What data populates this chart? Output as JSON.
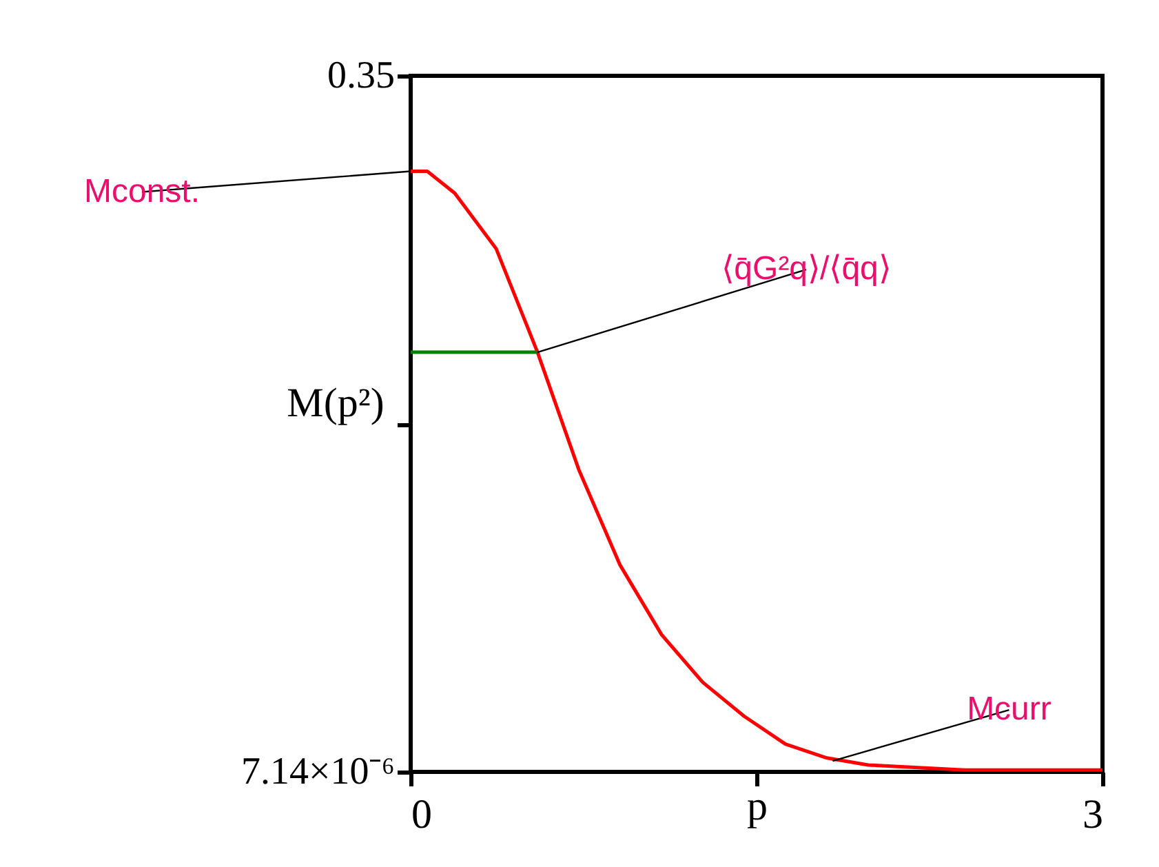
{
  "chart_data": {
    "type": "line",
    "ylabel": "M(p²)",
    "xlabel": "p",
    "xlim": [
      0,
      3
    ],
    "ylim": [
      7.14e-06,
      0.35
    ],
    "xticks": [
      0,
      {
        "value": 1.5,
        "label": null
      },
      3
    ],
    "yticks": [
      {
        "value": 7.14e-06,
        "label": "7.14×10⁻⁶"
      },
      {
        "value": 0.175,
        "label": null
      },
      0.35
    ],
    "grid": false,
    "marker": "none",
    "line_style": "solid",
    "series": [
      {
        "color": "#ff0000",
        "x": [
          0,
          0.072,
          0.191,
          0.371,
          0.55,
          0.729,
          0.908,
          1.088,
          1.267,
          1.446,
          1.625,
          1.805,
          1.984,
          2.402,
          3.0
        ],
        "values": [
          0.302,
          0.302,
          0.291,
          0.263,
          0.211,
          0.152,
          0.104,
          0.069,
          0.045,
          0.028,
          0.014,
          0.007,
          0.0035,
          0.001,
          0.001
        ]
      },
      {
        "color": "#008000",
        "x": [
          0,
          0.55
        ],
        "values": [
          0.211,
          0.211
        ]
      }
    ],
    "annotations": [
      {
        "text": "Mconst.",
        "x": 0,
        "y": 0.302
      },
      {
        "text": "⟨q̄G²q⟩/⟨q̄q⟩",
        "x": 0.55,
        "y": 0.211
      },
      {
        "text": "Mcurr",
        "x": 1.83,
        "y": 0.0055
      }
    ]
  }
}
